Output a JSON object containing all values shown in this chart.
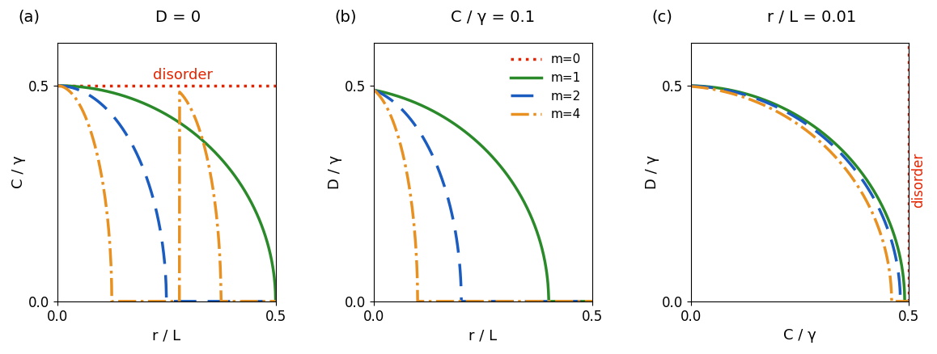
{
  "panel_a": {
    "title": "D = 0",
    "xlabel": "r / L",
    "ylabel": "C / γ",
    "xlim": [
      0,
      0.5
    ],
    "ylim": [
      0,
      0.6
    ],
    "yticks": [
      0.0,
      0.5
    ],
    "xticks": [
      0,
      0.5
    ],
    "disorder_horizontal": 0.5
  },
  "panel_b": {
    "title": "C / γ = 0.1",
    "xlabel": "r / L",
    "ylabel": "D / γ",
    "xlim": [
      0,
      0.5
    ],
    "ylim": [
      0,
      0.6
    ],
    "yticks": [
      0.0,
      0.5
    ],
    "xticks": [
      0,
      0.5
    ],
    "C_fixed": 0.1
  },
  "panel_c": {
    "title": "r / L = 0.01",
    "xlabel": "C / γ",
    "ylabel": "D / γ",
    "xlim": [
      0,
      0.5
    ],
    "ylim": [
      0,
      0.6
    ],
    "yticks": [
      0.0,
      0.5
    ],
    "xticks": [
      0,
      0.5
    ],
    "r_fixed": 0.01,
    "disorder_vertical": 0.5
  },
  "colors": {
    "m0": "#e32400",
    "m1": "#2a8a2a",
    "m2": "#1a5cbf",
    "m4": "#e89020"
  },
  "legend_labels": [
    "m=0",
    "m=1",
    "m=2",
    "m=4"
  ],
  "background": "#ffffff",
  "panel_labels": [
    "(a)",
    "(b)",
    "(c)"
  ],
  "disorder_color": "#e32400",
  "disorder_label": "disorder"
}
